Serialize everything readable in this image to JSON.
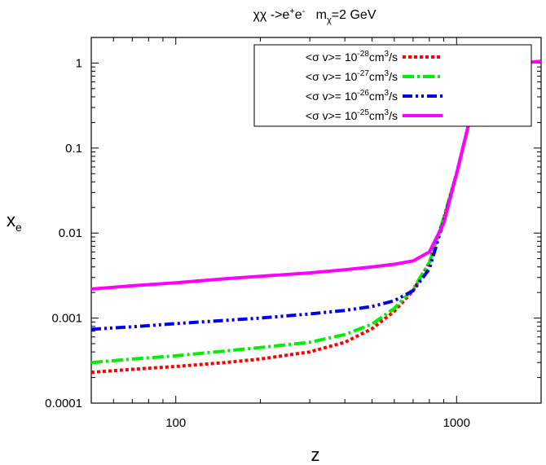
{
  "chart_data": {
    "type": "line",
    "title": {
      "process_base": "χχ ->e",
      "process_sup1": "+",
      "process_mid": "e",
      "process_sup2": "-",
      "mass_base": "m",
      "mass_sub": "χ",
      "mass_tail": "=2 GeV"
    },
    "xlabel": "z",
    "ylabel": {
      "base": "x",
      "sub": "e"
    },
    "xscale": "log",
    "yscale": "log",
    "xlim": [
      50,
      2000
    ],
    "ylim": [
      0.0001,
      2
    ],
    "x_ticks": [
      {
        "value": 100,
        "label": "100"
      },
      {
        "value": 1000,
        "label": "1000"
      }
    ],
    "y_ticks": [
      {
        "value": 0.0001,
        "label": "0.0001"
      },
      {
        "value": 0.001,
        "label": "0.001"
      },
      {
        "value": 0.01,
        "label": "0.01"
      },
      {
        "value": 0.1,
        "label": "0.1"
      },
      {
        "value": 1,
        "label": "1"
      }
    ],
    "grid": false,
    "legend_position": "top-right",
    "series": [
      {
        "name": "<σ v>= 10^-28 cm^3/s",
        "label_pre": "<σ v>= 10",
        "label_exp": "-28",
        "label_unit": "cm",
        "label_unit_exp": "3",
        "label_tail": "/s",
        "color": "#ff0000",
        "dash": "4,3",
        "x": [
          50,
          70,
          100,
          150,
          200,
          300,
          400,
          500,
          600,
          700,
          800,
          900,
          1000,
          1100,
          1300,
          1500,
          1700,
          2000
        ],
        "y": [
          0.00023,
          0.00025,
          0.00027,
          0.0003,
          0.00033,
          0.0004,
          0.00052,
          0.00075,
          0.0012,
          0.0021,
          0.0045,
          0.015,
          0.05,
          0.18,
          0.5,
          0.85,
          1.0,
          1.05
        ]
      },
      {
        "name": "<σ v>= 10^-27 cm^3/s",
        "label_pre": "<σ v>= 10",
        "label_exp": "-27",
        "label_unit": "cm",
        "label_unit_exp": "3",
        "label_tail": "/s",
        "color": "#00ee00",
        "dash": "14,4,3,4",
        "x": [
          50,
          70,
          100,
          150,
          200,
          300,
          400,
          500,
          600,
          700,
          800,
          900,
          1000,
          1100,
          1300,
          1500,
          1700,
          2000
        ],
        "y": [
          0.0003,
          0.00033,
          0.00036,
          0.00041,
          0.00045,
          0.00052,
          0.00064,
          0.00085,
          0.0013,
          0.0022,
          0.0045,
          0.015,
          0.05,
          0.18,
          0.5,
          0.85,
          1.0,
          1.05
        ]
      },
      {
        "name": "<σ v>= 10^-26 cm^3/s",
        "label_pre": "<σ v>= 10",
        "label_exp": "-26",
        "label_unit": "cm",
        "label_unit_exp": "3",
        "label_tail": "/s",
        "color": "#0000ee",
        "dash": "12,4,3,4,3,4",
        "x": [
          50,
          70,
          100,
          150,
          200,
          300,
          400,
          500,
          600,
          700,
          800,
          900,
          1000,
          1100,
          1300,
          1500,
          1700,
          2000
        ],
        "y": [
          0.00074,
          0.00079,
          0.00086,
          0.00094,
          0.001,
          0.00112,
          0.00123,
          0.00137,
          0.0016,
          0.0021,
          0.0038,
          0.014,
          0.05,
          0.18,
          0.5,
          0.85,
          1.0,
          1.05
        ]
      },
      {
        "name": "<σ v>= 10^-25 cm^3/s",
        "label_pre": "<σ v>= 10",
        "label_exp": "-25",
        "label_unit": "cm",
        "label_unit_exp": "3",
        "label_tail": "/s",
        "color": "#ff00ff",
        "dash": "",
        "x": [
          50,
          70,
          100,
          150,
          200,
          300,
          400,
          500,
          600,
          700,
          800,
          900,
          1000,
          1100,
          1300,
          1500,
          1700,
          2000
        ],
        "y": [
          0.0022,
          0.0024,
          0.0026,
          0.0029,
          0.0031,
          0.0034,
          0.0037,
          0.004,
          0.0043,
          0.0047,
          0.006,
          0.013,
          0.05,
          0.18,
          0.5,
          0.85,
          1.0,
          1.05
        ]
      }
    ]
  }
}
